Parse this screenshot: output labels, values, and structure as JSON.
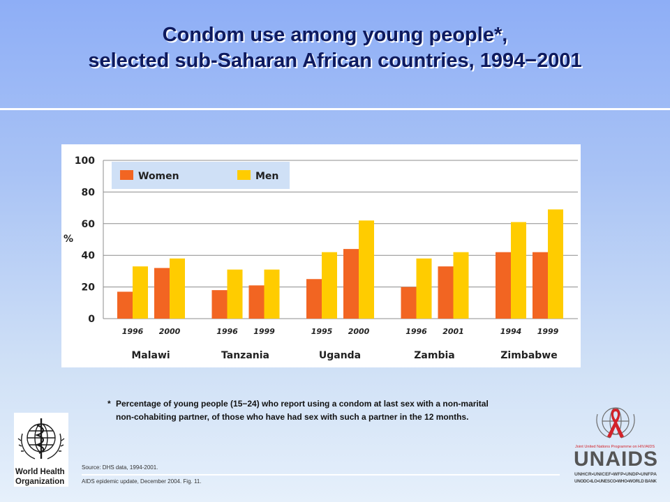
{
  "title": {
    "line1": "Condom use among young people*,",
    "line2": "selected sub-Saharan African countries, 1994−2001"
  },
  "footnote": {
    "star": "*",
    "text_line1": "Percentage of young people (15−24) who report using a condom at last sex with a non-marital",
    "text_line2": "non-cohabiting partner, of those who have had sex with such a partner in the 12 months."
  },
  "source": "Source:   DHS data, 1994-2001.",
  "citation": "AIDS epidemic update, December 2004.  Fig. 11.",
  "logos": {
    "who": {
      "line1": "World Health",
      "line2": "Organization"
    },
    "unaids": {
      "name": "UNAIDS",
      "tagline": "Joint United Nations Programme on HIV/AIDS",
      "sponsors1": "UNHCR•UNICEF•WFP•UNDP•UNFPA",
      "sponsors2": "UNODC•ILO•UNESCO•WHO•WORLD BANK"
    }
  },
  "colors": {
    "women": "#f26522",
    "men": "#ffcc00",
    "title": "#0e1a5e",
    "unaids_red": "#d2232a",
    "unaids_gray": "#555555"
  },
  "chart_data": {
    "type": "bar",
    "title": "Condom use among young people*, selected sub-Saharan African countries, 1994−2001",
    "ylabel": "%",
    "xlabel": "",
    "ylim": [
      0,
      100
    ],
    "yticks": [
      0,
      20,
      40,
      60,
      80,
      100
    ],
    "grid": true,
    "legend": {
      "position": "top-left",
      "entries": [
        "Women",
        "Men"
      ]
    },
    "series": [
      {
        "name": "Women",
        "color": "#f26522"
      },
      {
        "name": "Men",
        "color": "#ffcc00"
      }
    ],
    "groups": [
      {
        "country": "Malawi",
        "surveys": [
          {
            "year": "1996",
            "women": 17,
            "men": 33
          },
          {
            "year": "2000",
            "women": 32,
            "men": 38
          }
        ]
      },
      {
        "country": "Tanzania",
        "surveys": [
          {
            "year": "1996",
            "women": 18,
            "men": 31
          },
          {
            "year": "1999",
            "women": 21,
            "men": 31
          }
        ]
      },
      {
        "country": "Uganda",
        "surveys": [
          {
            "year": "1995",
            "women": 25,
            "men": 42
          },
          {
            "year": "2000",
            "women": 44,
            "men": 62
          }
        ]
      },
      {
        "country": "Zambia",
        "surveys": [
          {
            "year": "1996",
            "women": 20,
            "men": 38
          },
          {
            "year": "2001",
            "women": 33,
            "men": 42
          }
        ]
      },
      {
        "country": "Zimbabwe",
        "surveys": [
          {
            "year": "1994",
            "women": 42,
            "men": 61
          },
          {
            "year": "1999",
            "women": 42,
            "men": 69
          }
        ]
      }
    ]
  }
}
